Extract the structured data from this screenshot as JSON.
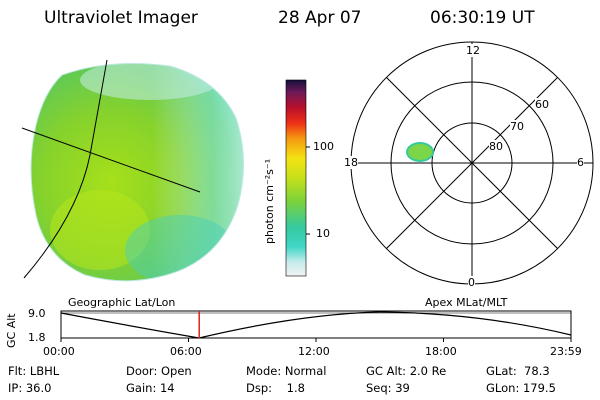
{
  "header": {
    "instrument": "Ultraviolet Imager",
    "date": "28 Apr 07",
    "time": "06:30:19 UT"
  },
  "colorbar": {
    "label": "photon cm⁻²s⁻¹",
    "ticks": [
      "100",
      "10"
    ]
  },
  "polar": {
    "mlt_labels": [
      "12",
      "18",
      "6",
      "0"
    ],
    "lat_labels": [
      "60",
      "70",
      "80"
    ]
  },
  "orbit": {
    "left_title": "Geographic Lat/Lon",
    "right_title": "Apex MLat/MLT",
    "y_axis_label": "GC Alt",
    "y_ticks": [
      "9.0",
      "1.8"
    ],
    "x_ticks": [
      "00:00",
      "06:00",
      "12:00",
      "18:00",
      "23:59"
    ],
    "current_time_fraction": 0.271
  },
  "footer": {
    "col1": [
      "Flt: LBHL",
      "IP: 36.0"
    ],
    "col2": [
      "Door: Open",
      "Gain: 14"
    ],
    "col3": [
      "Mode: Normal",
      "Dsp:    1.8"
    ],
    "col4": [
      "GC Alt: 2.0 Re",
      "Seq: 39"
    ],
    "col5": [
      "GLat:  78.3",
      "GLon: 179.5"
    ]
  }
}
